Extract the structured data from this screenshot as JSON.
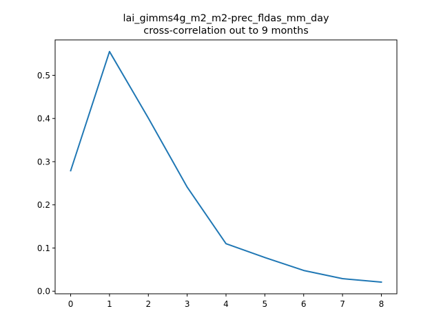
{
  "chart_data": {
    "type": "line",
    "title": [
      "lai_gimms4g_m2_m2-prec_fldas_mm_day",
      "cross-correlation out to 9 months"
    ],
    "xlabel": "",
    "ylabel": "",
    "x": [
      0,
      1,
      2,
      3,
      4,
      5,
      6,
      7,
      8
    ],
    "series": [
      {
        "values": [
          0.279,
          0.555,
          0.401,
          0.241,
          0.11,
          0.078,
          0.048,
          0.029,
          0.021
        ],
        "color": "#1f77b4"
      }
    ],
    "xlim": [
      -0.4,
      8.4
    ],
    "ylim": [
      -0.006,
      0.582
    ],
    "xticks": [
      0,
      1,
      2,
      3,
      4,
      5,
      6,
      7,
      8
    ],
    "xtick_labels": [
      "0",
      "1",
      "2",
      "3",
      "4",
      "5",
      "6",
      "7",
      "8"
    ],
    "yticks": [
      0.0,
      0.1,
      0.2,
      0.3,
      0.4,
      0.5
    ],
    "ytick_labels": [
      "0.0",
      "0.1",
      "0.2",
      "0.3",
      "0.4",
      "0.5"
    ],
    "grid": false,
    "legend": "none"
  }
}
